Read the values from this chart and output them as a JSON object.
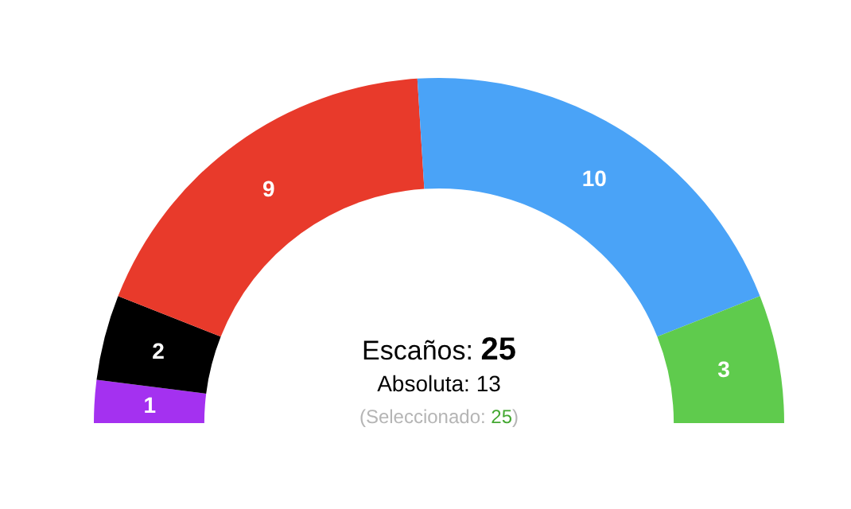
{
  "chart_data": {
    "type": "donut",
    "categories": [
      null,
      null,
      null,
      null,
      null
    ],
    "values": [
      1,
      2,
      9,
      10,
      3
    ],
    "colors": [
      "#a431f0",
      "#000000",
      "#e83a2b",
      "#4aa3f7",
      "#5fcb4d"
    ],
    "data_labels": true,
    "annotations": [
      "Escaños: 25",
      "Absoluta: 13",
      "(Seleccionado: 25)"
    ]
  }
}
